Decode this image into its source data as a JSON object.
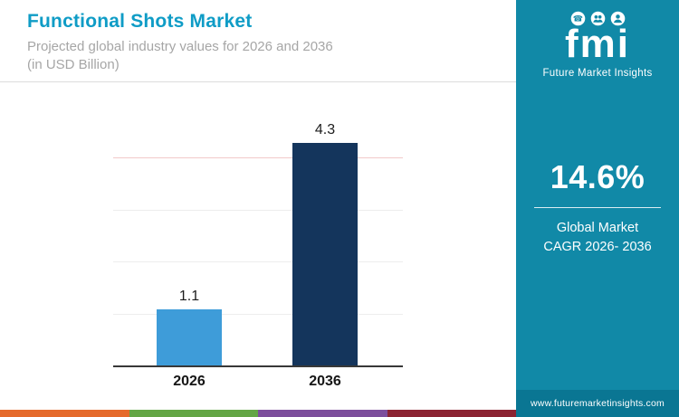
{
  "header": {
    "title": "Functional Shots Market",
    "subtitle_line1": "Projected global industry values for 2026 and 2036",
    "subtitle_line2": "(in USD Billion)"
  },
  "chart_data": {
    "type": "bar",
    "categories": [
      "2026",
      "2036"
    ],
    "values": [
      1.1,
      4.3
    ],
    "title": "Functional Shots Market",
    "xlabel": "",
    "ylabel": "USD Billion",
    "ylim": [
      0,
      4.5
    ],
    "grid": "horizontal",
    "legend": "none",
    "bar_colors": [
      "#3e9cd9",
      "#14355c"
    ]
  },
  "side_panel": {
    "brand": {
      "logo_text": "fmi",
      "brand_name": "Future Market Insights",
      "icons": [
        "phone-icon",
        "group-icon",
        "person-icon"
      ]
    },
    "stat": {
      "value": "14.6%",
      "label_line1": "Global Market",
      "label_line2": "CAGR 2026- 2036"
    },
    "website": "www.futuremarketinsights.com",
    "colors": {
      "background": "#1189a7",
      "footer": "#0a7693"
    }
  },
  "footer_stripe": {
    "colors": [
      "#e56a2b",
      "#63a645",
      "#7d4e9c",
      "#8c2332"
    ]
  }
}
